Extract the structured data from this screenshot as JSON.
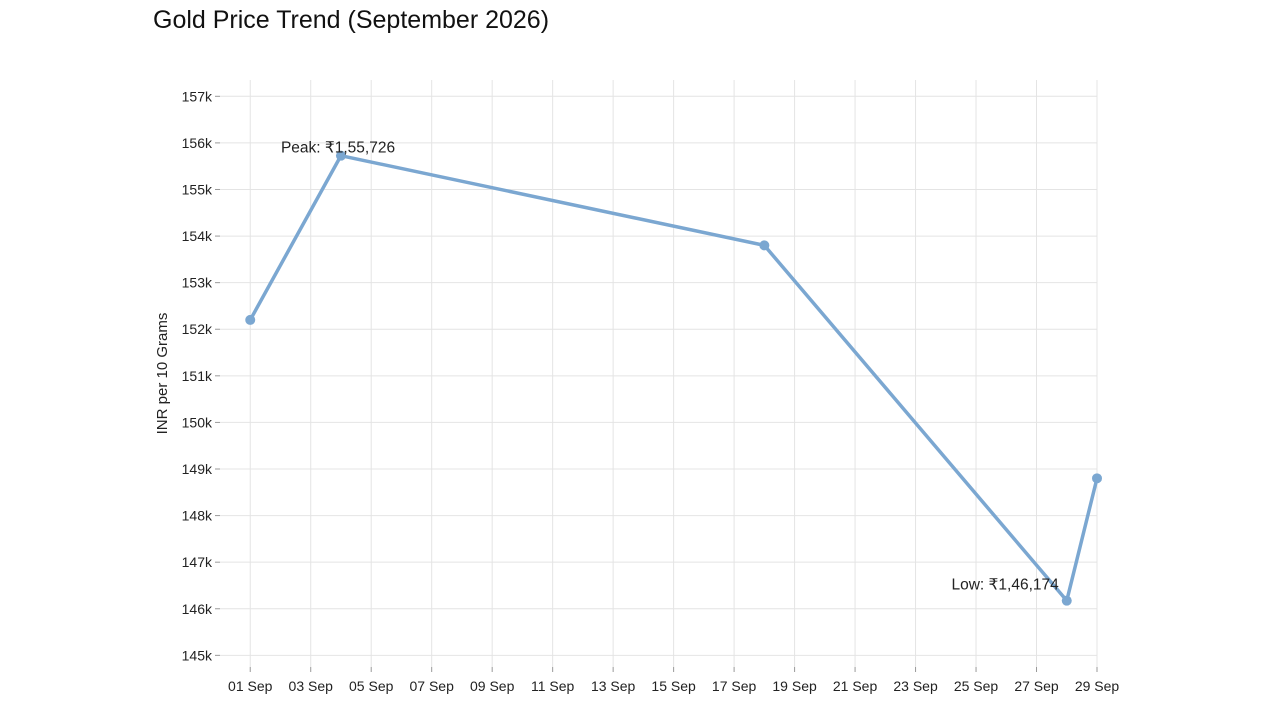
{
  "chart_data": {
    "type": "line",
    "title": "Gold Price Trend (September 2026)",
    "ylabel": "INR per 10 Grams",
    "xlabel": "",
    "x_tick_labels": [
      "01 Sep",
      "03 Sep",
      "05 Sep",
      "07 Sep",
      "09 Sep",
      "11 Sep",
      "13 Sep",
      "15 Sep",
      "17 Sep",
      "19 Sep",
      "21 Sep",
      "23 Sep",
      "25 Sep",
      "27 Sep",
      "29 Sep"
    ],
    "y_tick_labels": [
      "145k",
      "146k",
      "147k",
      "148k",
      "149k",
      "150k",
      "151k",
      "152k",
      "153k",
      "154k",
      "155k",
      "156k",
      "157k"
    ],
    "y_ticks": [
      145000,
      146000,
      147000,
      148000,
      149000,
      150000,
      151000,
      152000,
      153000,
      154000,
      155000,
      156000,
      157000
    ],
    "x_range": [
      "2026-08-31",
      "2026-09-29"
    ],
    "ylim": [
      144750,
      157350
    ],
    "grid": true,
    "line_color": "#7ba7d1",
    "series": [
      {
        "x": [
          "2026-09-01",
          "2026-09-04",
          "2026-09-18",
          "2026-09-28",
          "2026-09-29"
        ],
        "values": [
          152200,
          155726,
          153800,
          146174,
          148800
        ]
      }
    ],
    "annotations": [
      {
        "text": "Peak: ₹1,55,726",
        "x": "2026-09-04",
        "y": 155726
      },
      {
        "text": "Low: ₹1,46,174",
        "x": "2026-09-28",
        "y": 146174
      }
    ]
  }
}
